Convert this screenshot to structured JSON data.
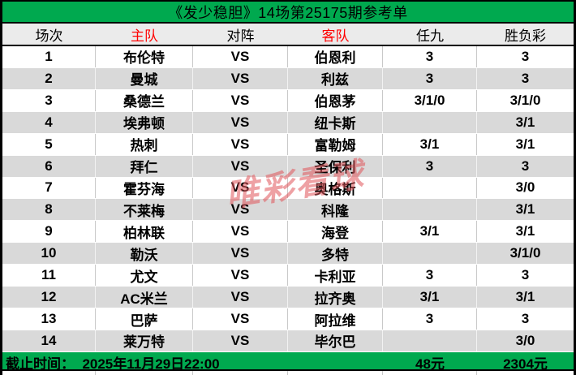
{
  "title": "《发少稳胆》14场第25175期参考单",
  "columns": {
    "no": "场次",
    "home": "主队",
    "vs": "对阵",
    "away": "客队",
    "ren9": "任九",
    "sfc": "胜负彩"
  },
  "vs_label": "VS",
  "rows": [
    {
      "no": "1",
      "home": "布伦特",
      "away": "伯恩利",
      "ren9": "3",
      "sfc": "3"
    },
    {
      "no": "2",
      "home": "曼城",
      "away": "利兹",
      "ren9": "3",
      "sfc": "3"
    },
    {
      "no": "3",
      "home": "桑德兰",
      "away": "伯恩茅",
      "ren9": "3/1/0",
      "sfc": "3/1/0"
    },
    {
      "no": "4",
      "home": "埃弗顿",
      "away": "纽卡斯",
      "ren9": "",
      "sfc": "3/1"
    },
    {
      "no": "5",
      "home": "热刺",
      "away": "富勒姆",
      "ren9": "3/1",
      "sfc": "3/1"
    },
    {
      "no": "6",
      "home": "拜仁",
      "away": "圣保利",
      "ren9": "3",
      "sfc": "3"
    },
    {
      "no": "7",
      "home": "霍芬海",
      "away": "奥格斯",
      "ren9": "",
      "sfc": "3/0"
    },
    {
      "no": "8",
      "home": "不莱梅",
      "away": "科隆",
      "ren9": "",
      "sfc": "3/1"
    },
    {
      "no": "9",
      "home": "柏林联",
      "away": "海登",
      "ren9": "3/1",
      "sfc": "3/1"
    },
    {
      "no": "10",
      "home": "勒沃",
      "away": "多特",
      "ren9": "",
      "sfc": "3/1/0"
    },
    {
      "no": "11",
      "home": "尤文",
      "away": "卡利亚",
      "ren9": "3",
      "sfc": "3"
    },
    {
      "no": "12",
      "home": "AC米兰",
      "away": "拉齐奥",
      "ren9": "3/1",
      "sfc": "3/1"
    },
    {
      "no": "13",
      "home": "巴萨",
      "away": "阿拉维",
      "ren9": "3",
      "sfc": "3"
    },
    {
      "no": "14",
      "home": "莱万特",
      "away": "毕尔巴",
      "ren9": "",
      "sfc": "3/0"
    }
  ],
  "footer": {
    "deadline": "截止时间：  2025年11月29日22:00",
    "ren9_price": "48元",
    "sfc_price": "2304元"
  },
  "watermark": "唯彩看球",
  "colors": {
    "green": "#00a94f",
    "stripe_gray": "#d9d9d9",
    "header_gray": "#ebebeb",
    "header_red": "#ff0000",
    "watermark_pink": "#e0545a"
  }
}
